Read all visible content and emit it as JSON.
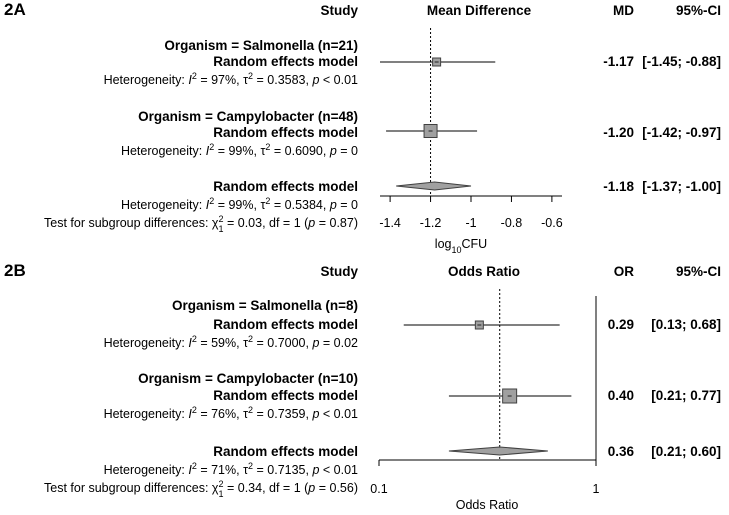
{
  "chart_data": [
    {
      "type": "forest",
      "panel_label": "2A",
      "headers": {
        "study": "Study",
        "effect": "Mean Difference",
        "estimate": "MD",
        "ci": "95%-CI"
      },
      "axis": {
        "xlim": [
          -1.45,
          -0.55
        ],
        "scale": "linear",
        "reference": -1.2,
        "ticks": [
          -1.4,
          -1.2,
          -1,
          -0.8,
          -0.6
        ],
        "tick_labels": [
          "-1.4",
          "-1.2",
          "-1",
          "-0.8",
          "-0.6"
        ],
        "label_main": "log",
        "label_sub": "10",
        "label_tail": "CFU"
      },
      "subgroups": [
        {
          "title": "Organism = Salmonella (n=21)",
          "model": "Random effects model",
          "estimate": -1.17,
          "lower": -1.45,
          "upper": -0.88,
          "weight": 0.45,
          "est_text": "-1.17",
          "ci_text": "[-1.45; -0.88]",
          "het_prefix": "Heterogeneity: ",
          "het_i2": "I",
          "het_i2_value": " = 97%, ",
          "het_tau": "τ",
          "het_tau_value": " = 0.3583, ",
          "het_p": "p",
          "het_p_value": " < 0.01"
        },
        {
          "title": "Organism = Campylobacter (n=48)",
          "model": "Random effects model",
          "estimate": -1.2,
          "lower": -1.42,
          "upper": -0.97,
          "weight": 1.0,
          "est_text": "-1.20",
          "ci_text": "[-1.42; -0.97]",
          "het_prefix": "Heterogeneity: ",
          "het_i2": "I",
          "het_i2_value": " = 99%, ",
          "het_tau": "τ",
          "het_tau_value": " = 0.6090, ",
          "het_p": "p",
          "het_p_value": " = 0"
        }
      ],
      "overall": {
        "model": "Random effects model",
        "estimate": -1.18,
        "lower": -1.37,
        "upper": -1.0,
        "est_text": "-1.18",
        "ci_text": "[-1.37; -1.00]",
        "het_prefix": "Heterogeneity: ",
        "het_i2": "I",
        "het_i2_value": " = 99%, ",
        "het_tau": "τ",
        "het_tau_value": " = 0.5384, ",
        "het_p": "p",
        "het_p_value": " = 0"
      },
      "subgroup_test": {
        "prefix": "Test for subgroup differences: ",
        "chi": "χ",
        "chi_sub": "1",
        "chi_sup": "2",
        "value": " = 0.03, df = 1 (",
        "p": "p",
        "p_value": " = 0.87)"
      }
    },
    {
      "type": "forest",
      "panel_label": "2B",
      "headers": {
        "study": "Study",
        "effect": "Odds Ratio",
        "estimate": "OR",
        "ci": "95%-CI"
      },
      "axis": {
        "xlim": [
          0.1,
          1
        ],
        "scale": "log",
        "reference": 0.36,
        "ticks": [
          0.1,
          1
        ],
        "tick_labels": [
          "0.1",
          "1"
        ],
        "label_main": "Odds Ratio",
        "label_sub": "",
        "label_tail": ""
      },
      "subgroups": [
        {
          "title": "Organism = Salmonella (n=8)",
          "model": "Random effects model",
          "estimate": 0.29,
          "lower": 0.13,
          "upper": 0.68,
          "weight": 0.55,
          "est_text": "0.29",
          "ci_text": "[0.13;  0.68]",
          "het_prefix": "Heterogeneity: ",
          "het_i2": "I",
          "het_i2_value": " = 59%, ",
          "het_tau": "τ",
          "het_tau_value": " = 0.7000, ",
          "het_p": "p",
          "het_p_value": " = 0.02"
        },
        {
          "title": "Organism = Campylobacter (n=10)",
          "model": "Random effects model",
          "estimate": 0.4,
          "lower": 0.21,
          "upper": 0.77,
          "weight": 1.0,
          "est_text": "0.40",
          "ci_text": "[0.21;  0.77]",
          "het_prefix": "Heterogeneity: ",
          "het_i2": "I",
          "het_i2_value": " = 76%, ",
          "het_tau": "τ",
          "het_tau_value": " = 0.7359, ",
          "het_p": "p",
          "het_p_value": " < 0.01"
        }
      ],
      "overall": {
        "model": "Random effects model",
        "estimate": 0.36,
        "lower": 0.21,
        "upper": 0.6,
        "est_text": "0.36",
        "ci_text": "[0.21;  0.60]",
        "het_prefix": "Heterogeneity: ",
        "het_i2": "I",
        "het_i2_value": " = 71%, ",
        "het_tau": "τ",
        "het_tau_value": " = 0.7135, ",
        "het_p": "p",
        "het_p_value": " < 0.01"
      },
      "subgroup_test": {
        "prefix": "Test for subgroup differences: ",
        "chi": "χ",
        "chi_sub": "1",
        "chi_sup": "2",
        "value": " = 0.34, df = 1 (",
        "p": "p",
        "p_value": " = 0.56)"
      }
    }
  ],
  "colors": {
    "box": "#a0a0a0",
    "diamond": "#a0a0a0",
    "line": "#000000"
  }
}
